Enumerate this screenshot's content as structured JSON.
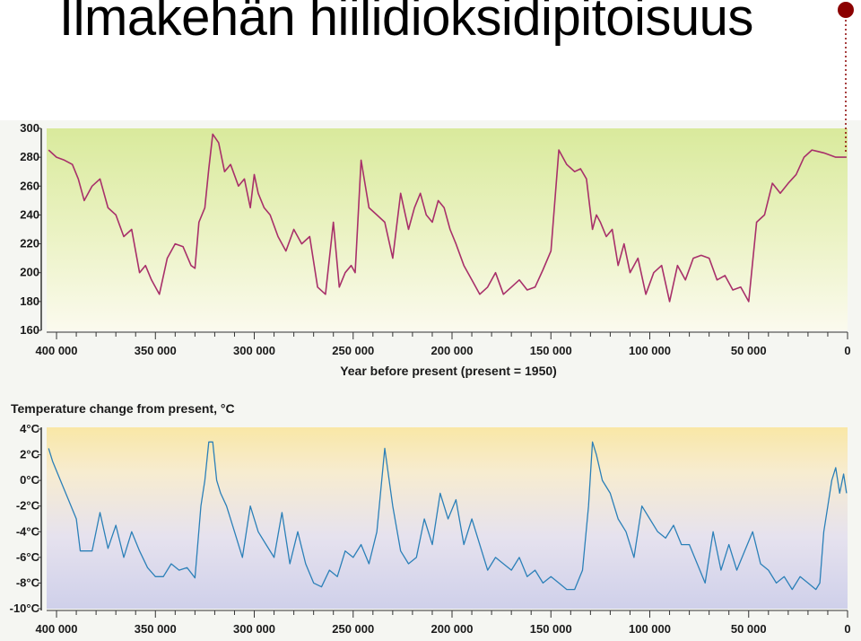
{
  "slide": {
    "title": "Ilmakehän hiilidioksidipitoisuus",
    "accent_color": "#8b0000"
  },
  "chart_data": [
    {
      "type": "line",
      "title": "",
      "xlabel": "Year before present (present = 1950)",
      "ylabel": "",
      "xlim": [
        405000,
        0
      ],
      "ylim": [
        160,
        300
      ],
      "x_ticks": [
        400000,
        350000,
        300000,
        250000,
        200000,
        150000,
        100000,
        50000,
        0
      ],
      "x_tick_labels": [
        "400 000",
        "350 000",
        "300 000",
        "250 000",
        "200 000",
        "150 000",
        "100 000",
        "50 000",
        "0"
      ],
      "y_ticks": [
        160,
        180,
        200,
        220,
        240,
        260,
        280,
        300
      ],
      "y_tick_labels": [
        "160",
        "180",
        "200",
        "220",
        "240",
        "260",
        "280",
        "300"
      ],
      "color": "#a8306a",
      "series": [
        {
          "x": [
            404000,
            400000,
            396000,
            392000,
            389000,
            386000,
            382000,
            378000,
            374000,
            370000,
            366000,
            362000,
            358000,
            355000,
            352000,
            348000,
            344000,
            340000,
            336000,
            332000,
            330000,
            328000,
            325000,
            323000,
            321000,
            318000,
            315000,
            312000,
            308000,
            305000,
            302000,
            300000,
            298000,
            295000,
            292000,
            288000,
            284000,
            280000,
            276000,
            272000,
            268000,
            264000,
            260000,
            257000,
            254000,
            251000,
            249000,
            246000,
            242000,
            238000,
            234000,
            230000,
            226000,
            222000,
            219000,
            216000,
            213000,
            210000,
            207000,
            204000,
            201000,
            198000,
            194000,
            190000,
            186000,
            182000,
            178000,
            174000,
            170000,
            166000,
            162000,
            158000,
            154000,
            150000,
            146000,
            142000,
            138000,
            135000,
            132000,
            129000,
            127000,
            125000,
            122000,
            119000,
            116000,
            113000,
            110000,
            106000,
            102000,
            98000,
            94000,
            90000,
            86000,
            82000,
            78000,
            74000,
            70000,
            66000,
            62000,
            58000,
            54000,
            50000,
            46000,
            42000,
            38000,
            34000,
            30000,
            26000,
            22000,
            18000,
            15000,
            12000,
            10000,
            8000,
            6000,
            4000,
            2000,
            500
          ],
          "y": [
            285,
            280,
            278,
            275,
            265,
            250,
            260,
            265,
            245,
            240,
            225,
            230,
            200,
            205,
            195,
            185,
            210,
            220,
            218,
            205,
            203,
            235,
            245,
            272,
            296,
            290,
            270,
            275,
            260,
            265,
            245,
            268,
            255,
            245,
            240,
            225,
            215,
            230,
            220,
            225,
            190,
            185,
            235,
            190,
            200,
            205,
            200,
            278,
            245,
            240,
            235,
            210,
            255,
            230,
            245,
            255,
            240,
            235,
            250,
            245,
            230,
            220,
            205,
            195,
            185,
            190,
            200,
            185,
            190,
            195,
            188,
            190,
            202,
            215,
            285,
            275,
            270,
            272,
            265,
            230,
            240,
            235,
            225,
            230,
            205,
            220,
            200,
            210,
            185,
            200,
            205,
            180,
            205,
            195,
            210,
            212,
            210,
            195,
            198,
            188,
            190,
            180,
            235,
            240,
            262,
            255,
            262,
            268,
            280,
            285,
            284,
            283,
            282,
            281,
            280,
            280,
            280,
            280
          ]
        }
      ]
    },
    {
      "type": "line",
      "title": "Temperature change from present, °C",
      "xlabel": "",
      "ylabel": "",
      "xlim": [
        405000,
        0
      ],
      "ylim": [
        -10,
        4
      ],
      "x_ticks": [
        400000,
        350000,
        300000,
        250000,
        200000,
        150000,
        100000,
        50000,
        0
      ],
      "x_tick_labels": [
        "400 000",
        "350 000",
        "300 000",
        "250 000",
        "200 000",
        "150 000",
        "100 000",
        "50 000",
        "0"
      ],
      "y_ticks": [
        4,
        2,
        0,
        -2,
        -4,
        -6,
        -8,
        -10
      ],
      "y_tick_labels": [
        "4°C",
        "2°C",
        "0°C",
        "-2°C",
        "-4°C",
        "-6°C",
        "-8°C",
        "-10°C"
      ],
      "color": "#2c80b8",
      "series": [
        {
          "x": [
            404000,
            402000,
            398000,
            394000,
            390000,
            388000,
            386000,
            382000,
            378000,
            374000,
            370000,
            366000,
            362000,
            358000,
            354000,
            350000,
            346000,
            342000,
            338000,
            334000,
            330000,
            327000,
            325000,
            323000,
            321000,
            319000,
            317000,
            314000,
            310000,
            306000,
            302000,
            298000,
            294000,
            290000,
            286000,
            282000,
            278000,
            274000,
            270000,
            266000,
            262000,
            258000,
            254000,
            250000,
            246000,
            242000,
            238000,
            234000,
            230000,
            226000,
            222000,
            218000,
            214000,
            210000,
            206000,
            202000,
            198000,
            194000,
            190000,
            186000,
            182000,
            178000,
            174000,
            170000,
            166000,
            162000,
            158000,
            154000,
            150000,
            146000,
            142000,
            138000,
            134000,
            131000,
            129000,
            127000,
            124000,
            120000,
            116000,
            112000,
            108000,
            104000,
            100000,
            96000,
            92000,
            88000,
            84000,
            80000,
            76000,
            72000,
            68000,
            64000,
            60000,
            56000,
            52000,
            48000,
            44000,
            40000,
            36000,
            32000,
            28000,
            24000,
            20000,
            16000,
            14000,
            12000,
            10000,
            8000,
            6000,
            4000,
            2000,
            500
          ],
          "y": [
            2.5,
            1.5,
            0,
            -1.5,
            -3,
            -5.5,
            -5.5,
            -5.5,
            -2.5,
            -5.3,
            -3.5,
            -6,
            -4,
            -5.5,
            -6.8,
            -7.5,
            -7.5,
            -6.5,
            -7,
            -6.8,
            -7.6,
            -2,
            0,
            3,
            3,
            0,
            -1,
            -2,
            -4,
            -6,
            -2,
            -4,
            -5,
            -6,
            -2.5,
            -6.5,
            -4,
            -6.5,
            -8,
            -8.3,
            -7,
            -7.5,
            -5.5,
            -6,
            -5,
            -6.5,
            -4,
            2.5,
            -2,
            -5.5,
            -6.5,
            -6,
            -3,
            -5,
            -1,
            -3,
            -1.5,
            -5,
            -3,
            -5,
            -7,
            -6,
            -6.5,
            -7,
            -6,
            -7.5,
            -7,
            -8,
            -7.5,
            -8,
            -8.5,
            -8.5,
            -7,
            -2,
            3,
            2,
            0,
            -1,
            -3,
            -4,
            -6,
            -2,
            -3,
            -4,
            -4.5,
            -3.5,
            -5,
            -5,
            -6.5,
            -8,
            -4,
            -7,
            -5,
            -7,
            -5.5,
            -4,
            -6.5,
            -7,
            -8,
            -7.5,
            -8.5,
            -7.5,
            -8,
            -8.5,
            -8,
            -4,
            -2,
            0,
            1,
            -1,
            0.5,
            -1
          ]
        }
      ]
    }
  ]
}
